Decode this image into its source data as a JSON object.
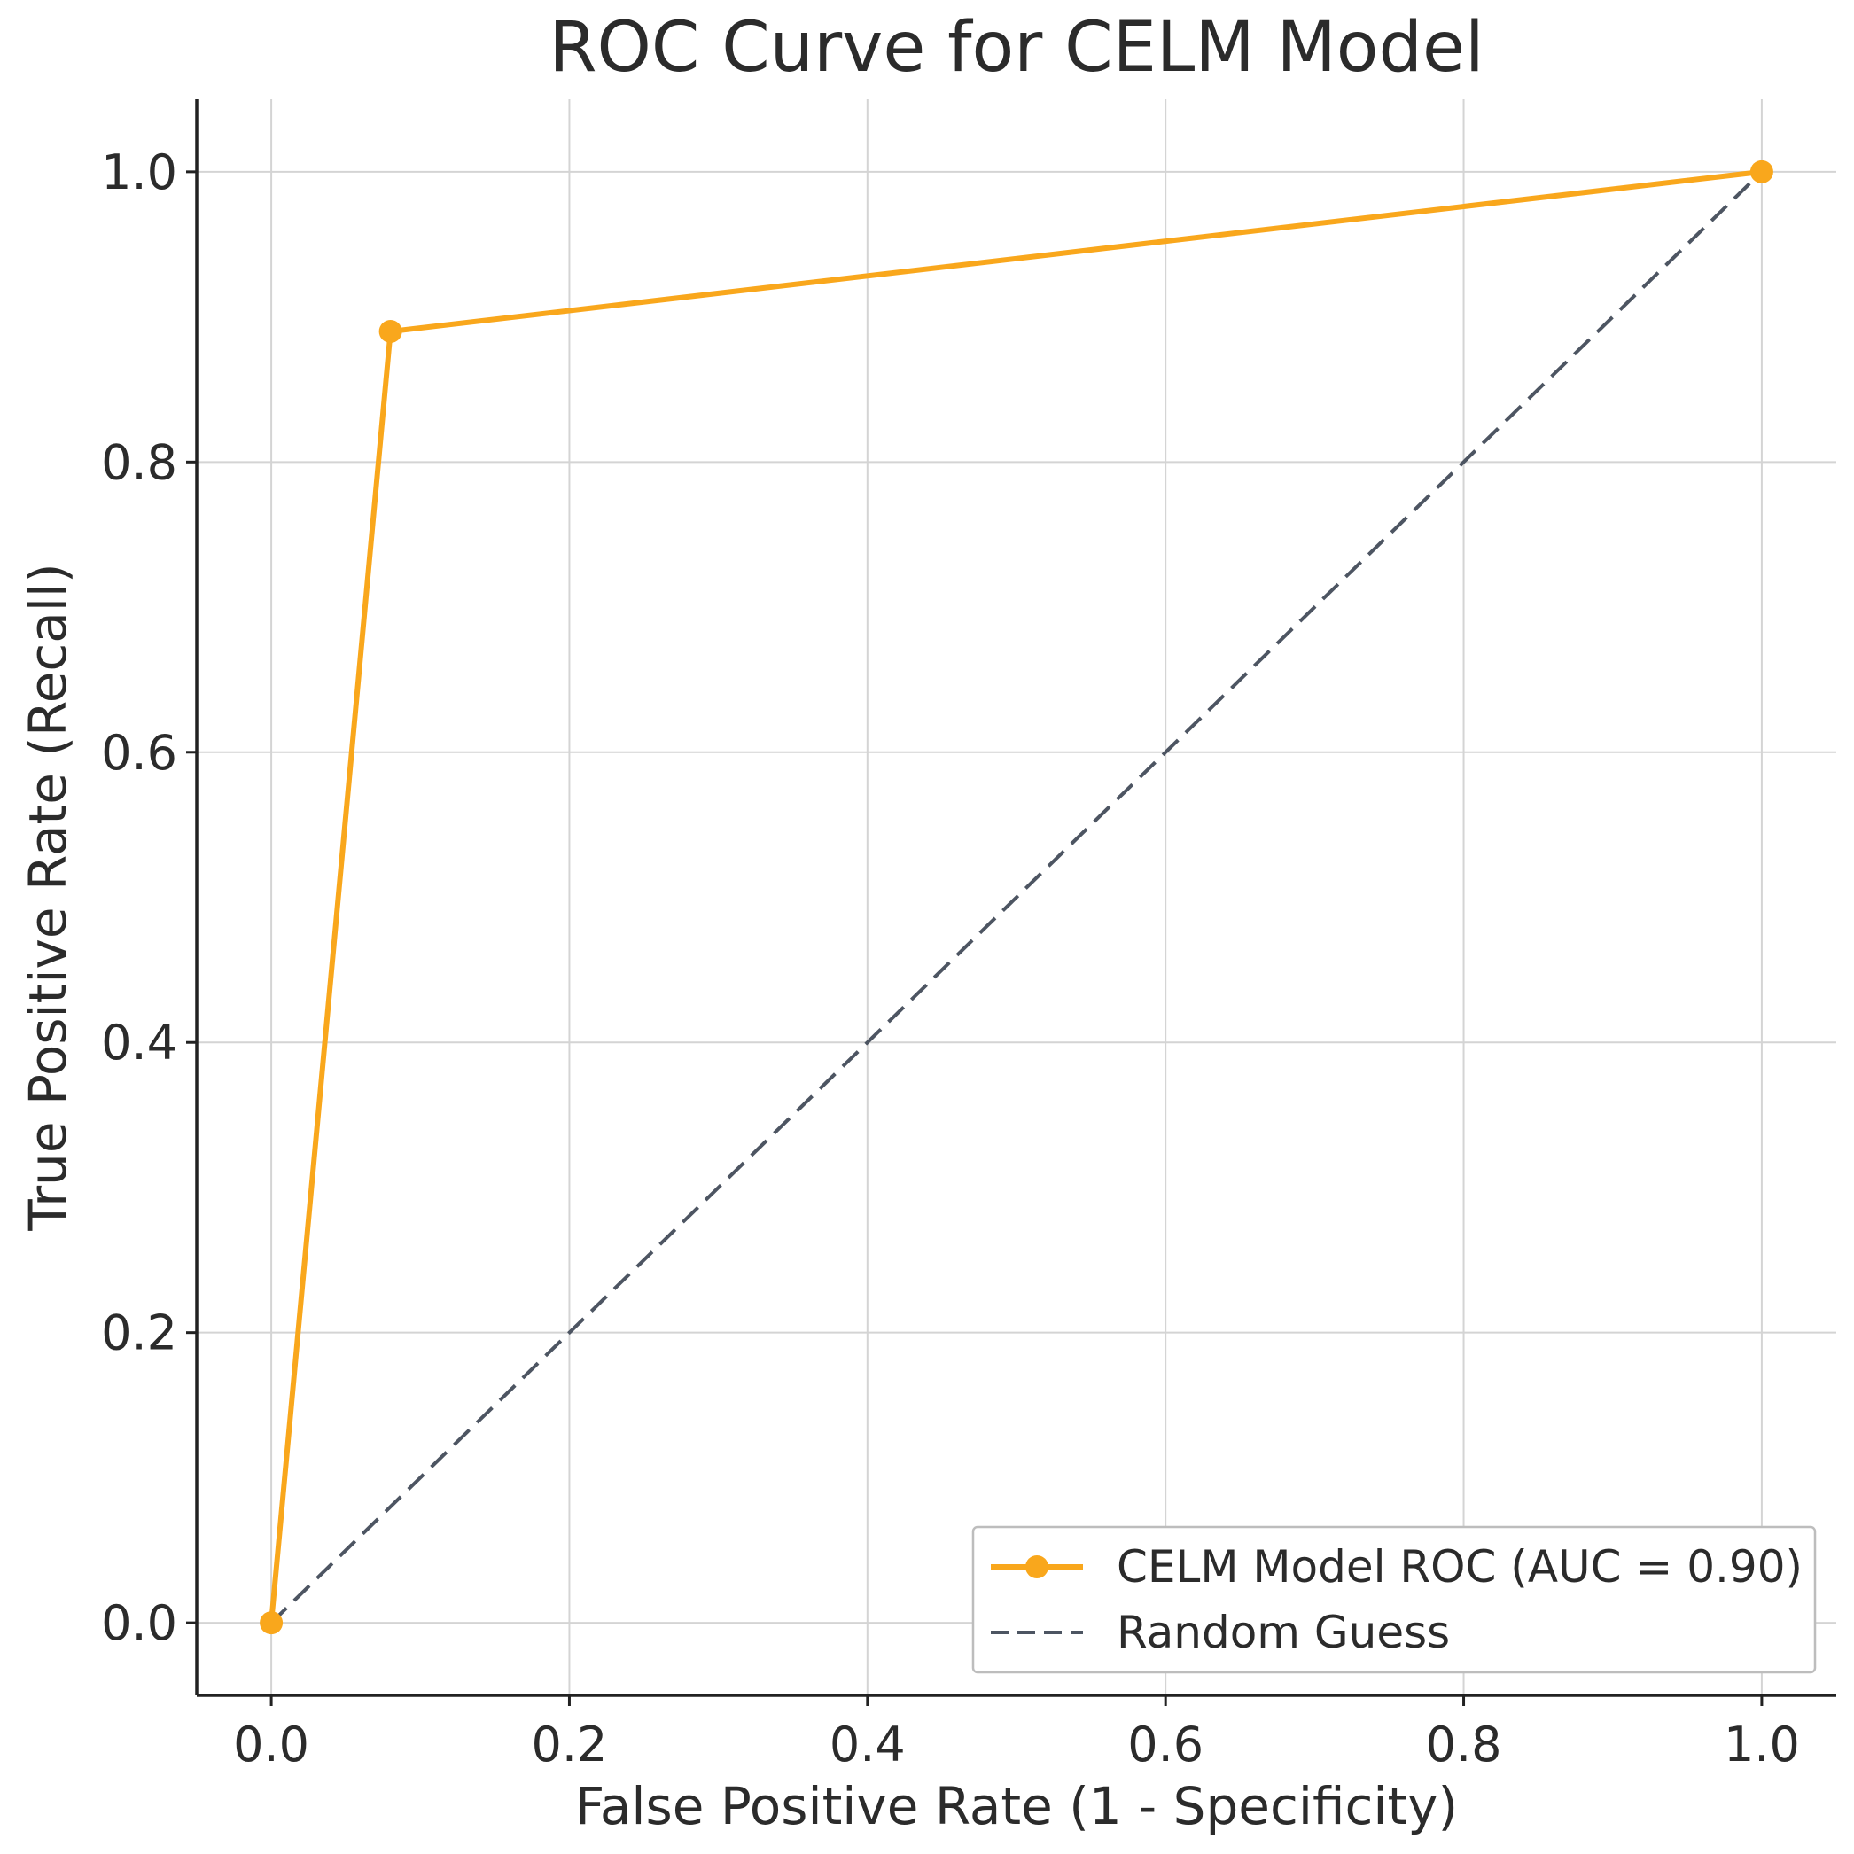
{
  "chart_data": {
    "type": "line",
    "title": "ROC Curve for CELM Model",
    "xlabel": "False Positive Rate (1 - Specificity)",
    "ylabel": "True Positive Rate (Recall)",
    "xlim": [
      -0.05,
      1.05
    ],
    "ylim": [
      -0.05,
      1.05
    ],
    "xticks": [
      0.0,
      0.2,
      0.4,
      0.6,
      0.8,
      1.0
    ],
    "yticks": [
      0.0,
      0.2,
      0.4,
      0.6,
      0.8,
      1.0
    ],
    "grid": true,
    "legend_position": "lower-right",
    "series": [
      {
        "name": "CELM Model ROC (AUC = 0.90)",
        "x": [
          0.0,
          0.08,
          1.0
        ],
        "y": [
          0.0,
          0.89,
          1.0
        ],
        "color": "#f9a71c",
        "style": "solid",
        "marker": "circle"
      },
      {
        "name": "Random Guess",
        "x": [
          0.0,
          1.0
        ],
        "y": [
          0.0,
          1.0
        ],
        "color": "#4d5562",
        "style": "dashed",
        "marker": "none"
      }
    ]
  }
}
